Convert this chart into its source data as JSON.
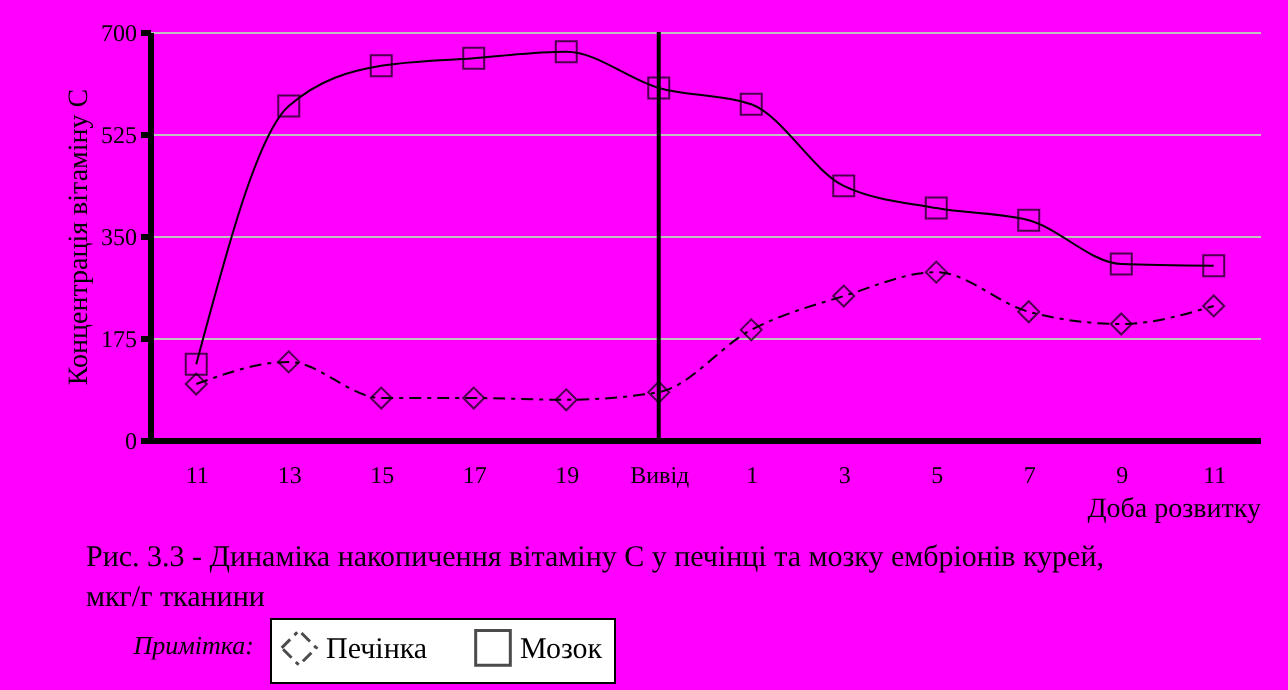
{
  "chart_data": {
    "type": "line",
    "categories": [
      "11",
      "13",
      "15",
      "17",
      "19",
      "Вивід",
      "1",
      "3",
      "5",
      "7",
      "9",
      "11"
    ],
    "series": [
      {
        "name": "Печінка",
        "color": "#000000",
        "marker": "diamond",
        "line_style": "dashed",
        "values": [
          96,
          134,
          72,
          72,
          69,
          82,
          189,
          247,
          288,
          220,
          199,
          230
        ]
      },
      {
        "name": "Мозок",
        "color": "#000000",
        "marker": "square",
        "line_style": "solid",
        "values": [
          130,
          573,
          642,
          655,
          666,
          604,
          576,
          436,
          398,
          377,
          302,
          299
        ]
      }
    ],
    "xlabel": "Доба розвитку",
    "ylabel": "Концентрація вітаміну С",
    "ylim": [
      0,
      700
    ],
    "yticks": [
      0,
      175,
      350,
      525,
      700
    ],
    "grid": "y",
    "legend": "bottom",
    "ref_lines": [
      {
        "axis": "x",
        "value": "Вивід",
        "color": "#000000"
      }
    ],
    "annotations": [
      "Рис. 3.3 - Динаміка накопичення вітаміну С у печінці та мозку ембріонів курей, мкг/г тканини",
      "Примітка:"
    ]
  }
}
